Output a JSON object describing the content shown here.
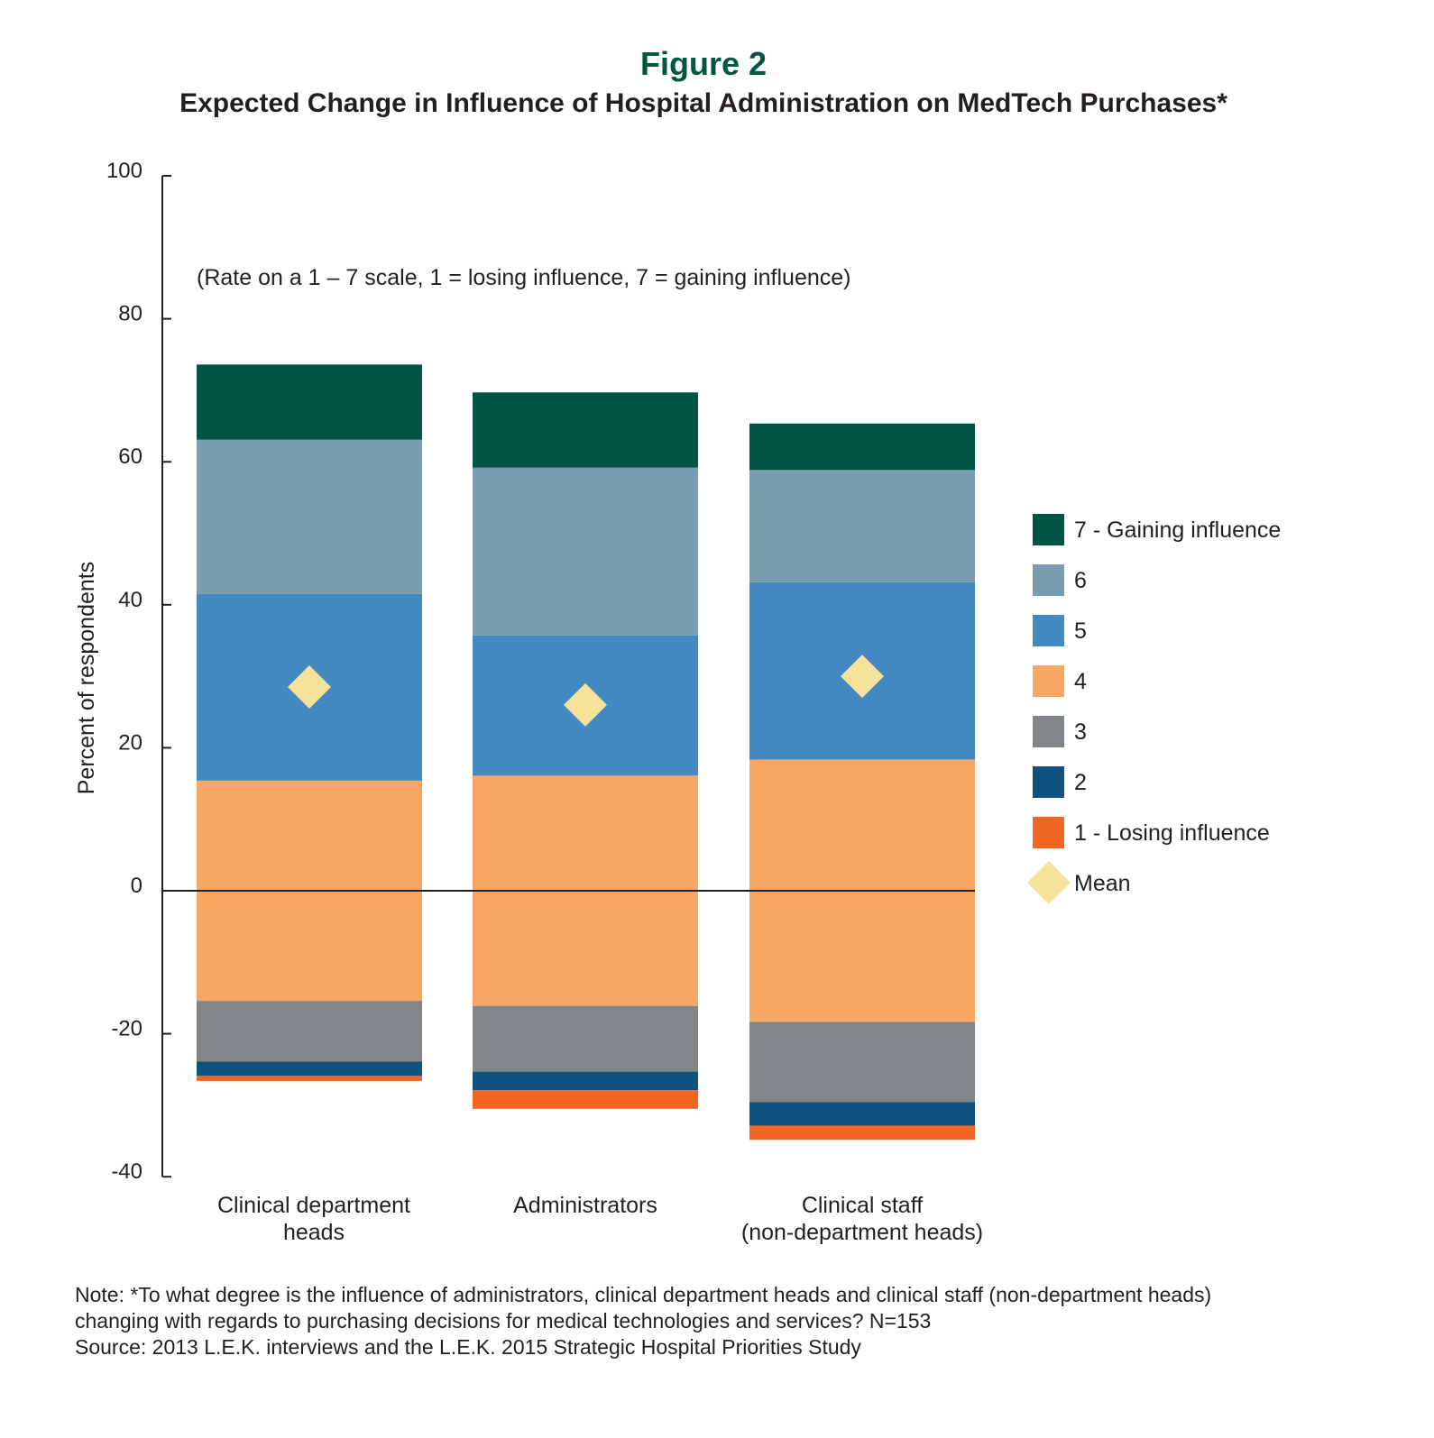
{
  "header": {
    "figure_label": "Figure 2",
    "title": "Expected Change in Influence of Hospital Administration on MedTech Purchases*"
  },
  "chart_data": {
    "type": "bar",
    "stacked": true,
    "diverging": true,
    "annotation": "(Rate on a 1 – 7 scale, 1 = losing influence, 7 = gaining influence)",
    "ylabel": "Percent of respondents",
    "ylim": [
      -40,
      100
    ],
    "yticks": [
      100,
      80,
      60,
      40,
      20,
      0,
      -20,
      -40
    ],
    "categories": [
      [
        "Clinical department",
        "heads"
      ],
      [
        "Administrators"
      ],
      [
        "Clinical staff",
        "(non-department heads)"
      ]
    ],
    "series": [
      {
        "name": "1 - Losing influence",
        "color": "#f26522",
        "side": "negative",
        "values": [
          0.7,
          2.6,
          2.0
        ]
      },
      {
        "name": "2",
        "color": "#0f5280",
        "side": "negative",
        "values": [
          2.0,
          2.6,
          3.3
        ]
      },
      {
        "name": "3",
        "color": "#818688",
        "side": "negative",
        "values": [
          8.5,
          9.2,
          11.2
        ]
      },
      {
        "name": "4",
        "color": "#f7a762",
        "side": "split",
        "values": [
          30.8,
          32.2,
          36.7
        ]
      },
      {
        "name": "5",
        "color": "#4389c2",
        "side": "positive",
        "values": [
          26.1,
          19.6,
          24.8
        ]
      },
      {
        "name": "6",
        "color": "#7a9cb0",
        "side": "positive",
        "values": [
          21.6,
          23.5,
          15.7
        ]
      },
      {
        "name": "7 - Gaining influence",
        "color": "#005442",
        "side": "positive",
        "values": [
          10.5,
          10.5,
          6.5
        ]
      }
    ],
    "mean": {
      "name": "Mean",
      "color": "#f7e29c",
      "values": [
        28.5,
        26.0,
        30.0
      ]
    },
    "legend_order": [
      "7 - Gaining influence",
      "6",
      "5",
      "4",
      "3",
      "2",
      "1 - Losing influence",
      "Mean"
    ],
    "legend_position": "right",
    "grid": false
  },
  "note": {
    "line1": "Note: *To what degree is the influence of administrators, clinical department heads and clinical staff (non-department heads)",
    "line2": "changing with regards to purchasing decisions for medical technologies and services? N=153",
    "line3": "Source: 2013 L.E.K. interviews and the L.E.K. 2015 Strategic Hospital Priorities Study"
  }
}
